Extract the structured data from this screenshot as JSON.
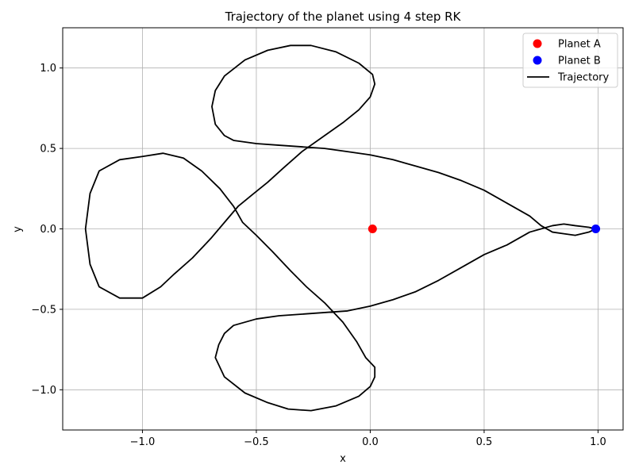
{
  "chart_data": {
    "type": "line",
    "title": "Trajectory of the planet using 4 step RK",
    "xlabel": "x",
    "ylabel": "y",
    "xlim": [
      -1.35,
      1.11
    ],
    "ylim": [
      -1.25,
      1.25
    ],
    "xticks": [
      -1.0,
      -0.5,
      0.0,
      0.5,
      1.0
    ],
    "xtick_labels": [
      "−1.0",
      "−0.5",
      "0.0",
      "0.5",
      "1.0"
    ],
    "yticks": [
      -1.0,
      -0.5,
      0.0,
      0.5,
      1.0
    ],
    "ytick_labels": [
      "−1.0",
      "−0.5",
      "0.0",
      "0.5",
      "1.0"
    ],
    "grid": true,
    "legend_position": "top-right",
    "series": [
      {
        "name": "Planet A",
        "kind": "point",
        "color": "#ff0000",
        "x": [
          0.01
        ],
        "y": [
          0.0
        ]
      },
      {
        "name": "Planet B",
        "kind": "point",
        "color": "#0000ff",
        "x": [
          0.99
        ],
        "y": [
          0.0
        ]
      },
      {
        "name": "Trajectory",
        "kind": "line",
        "color": "#000000",
        "x": [
          0.99,
          0.96,
          0.9,
          0.85,
          0.8,
          0.75,
          0.7,
          0.6,
          0.5,
          0.4,
          0.3,
          0.2,
          0.1,
          0.0,
          -0.1,
          -0.2,
          -0.3,
          -0.4,
          -0.5,
          -0.6,
          -0.64,
          -0.68,
          -0.695,
          -0.68,
          -0.64,
          -0.55,
          -0.45,
          -0.35,
          -0.26,
          -0.15,
          -0.05,
          0.01,
          0.02,
          0.0,
          -0.05,
          -0.12,
          -0.2,
          -0.3,
          -0.38,
          -0.45,
          -0.52,
          -0.58,
          -0.64,
          -0.7,
          -0.78,
          -0.86,
          -0.92,
          -1.0,
          -1.1,
          -1.19,
          -1.23,
          -1.25,
          -1.23,
          -1.19,
          -1.1,
          -1.0,
          -0.91,
          -0.82,
          -0.74,
          -0.66,
          -0.6,
          -0.56,
          -0.5,
          -0.43,
          -0.35,
          -0.28,
          -0.2,
          -0.12,
          -0.06,
          -0.02,
          0.02,
          0.02,
          0.0,
          -0.05,
          -0.15,
          -0.26,
          -0.36,
          -0.45,
          -0.55,
          -0.64,
          -0.68,
          -0.665,
          -0.64,
          -0.6,
          -0.5,
          -0.4,
          -0.3,
          -0.2,
          -0.1,
          0.0,
          0.1,
          0.2,
          0.3,
          0.4,
          0.5,
          0.6,
          0.7,
          0.75,
          0.8,
          0.85,
          0.9,
          0.96,
          0.99
        ],
        "y": [
          0.0,
          -0.02,
          -0.04,
          -0.03,
          -0.02,
          0.02,
          0.08,
          0.16,
          0.24,
          0.3,
          0.35,
          0.39,
          0.43,
          0.46,
          0.48,
          0.5,
          0.51,
          0.52,
          0.53,
          0.55,
          0.58,
          0.65,
          0.76,
          0.86,
          0.95,
          1.05,
          1.11,
          1.14,
          1.14,
          1.1,
          1.03,
          0.96,
          0.9,
          0.82,
          0.74,
          0.66,
          0.58,
          0.48,
          0.38,
          0.29,
          0.21,
          0.14,
          0.04,
          -0.06,
          -0.18,
          -0.28,
          -0.36,
          -0.43,
          -0.43,
          -0.36,
          -0.22,
          0.0,
          0.22,
          0.36,
          0.43,
          0.45,
          0.47,
          0.44,
          0.36,
          0.25,
          0.14,
          0.04,
          -0.04,
          -0.14,
          -0.26,
          -0.36,
          -0.46,
          -0.58,
          -0.7,
          -0.8,
          -0.86,
          -0.92,
          -0.98,
          -1.04,
          -1.1,
          -1.13,
          -1.12,
          -1.08,
          -1.02,
          -0.92,
          -0.8,
          -0.72,
          -0.65,
          -0.6,
          -0.56,
          -0.54,
          -0.53,
          -0.52,
          -0.51,
          -0.48,
          -0.44,
          -0.39,
          -0.32,
          -0.24,
          -0.16,
          -0.1,
          -0.02,
          0.0,
          0.02,
          0.03,
          0.02,
          0.01,
          0.0
        ]
      }
    ]
  }
}
